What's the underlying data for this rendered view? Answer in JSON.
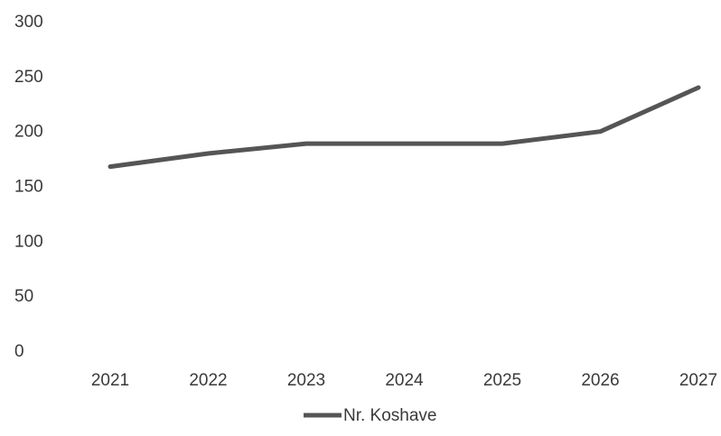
{
  "chart_data": {
    "type": "line",
    "title": "",
    "xlabel": "",
    "ylabel": "",
    "categories": [
      "2021",
      "2022",
      "2023",
      "2024",
      "2025",
      "2026",
      "2027"
    ],
    "series": [
      {
        "name": "Nr. Koshave",
        "values": [
          168,
          180,
          189,
          189,
          189,
          200,
          240
        ],
        "color": "#555555"
      }
    ],
    "ylim": [
      0,
      300
    ],
    "yticks": [
      0,
      50,
      100,
      150,
      200,
      250,
      300
    ],
    "grid": false,
    "legend": "bottom"
  }
}
